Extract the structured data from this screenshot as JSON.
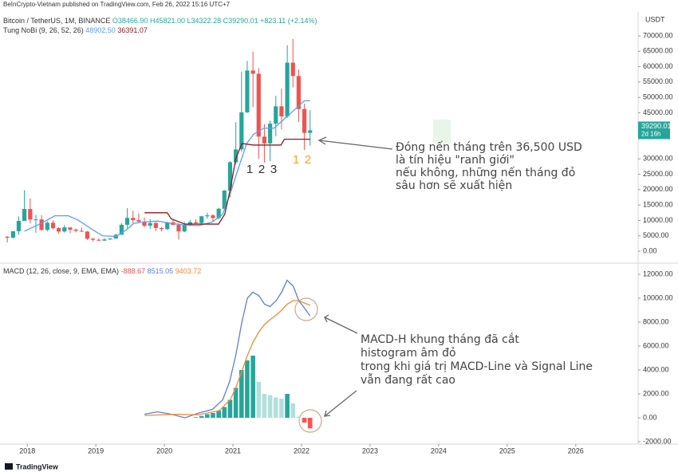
{
  "publisher": "BeInCrypto-Vietnam published on TradingView.com, Feb 26, 2022 15:16 UTC+7",
  "footer": "TradingView",
  "currency": "USDT",
  "chart_data": [
    {
      "type": "candlestick",
      "title": "Bitcoin / TetherUS, 1M, BINANCE",
      "ohlc_labels": [
        "O38466.90",
        "H45821.00",
        "L34322.28",
        "C39290.01",
        "+823.11 (+2.14%)"
      ],
      "indicator": "Tung NoBi (9, 26, 52, 26)",
      "up_color": "#26a69a",
      "down_color": "#ef5350",
      "x": [
        2017.708,
        2017.792,
        2017.875,
        2017.958,
        2018.042,
        2018.125,
        2018.208,
        2018.292,
        2018.375,
        2018.458,
        2018.542,
        2018.625,
        2018.708,
        2018.792,
        2018.875,
        2018.958,
        2019.042,
        2019.125,
        2019.208,
        2019.292,
        2019.375,
        2019.458,
        2019.542,
        2019.625,
        2019.708,
        2019.792,
        2019.875,
        2019.958,
        2020.042,
        2020.125,
        2020.208,
        2020.292,
        2020.375,
        2020.458,
        2020.542,
        2020.625,
        2020.708,
        2020.792,
        2020.875,
        2020.958,
        2021.042,
        2021.125,
        2021.208,
        2021.292,
        2021.375,
        2021.458,
        2021.542,
        2021.625,
        2021.708,
        2021.792,
        2021.875,
        2021.958,
        2022.042,
        2022.125
      ],
      "open": [
        4690,
        4378,
        6463,
        9838,
        13716,
        10285,
        10326,
        6923,
        9246,
        7485,
        6391,
        7730,
        7011,
        6626,
        6371,
        4041,
        3702,
        3434,
        3814,
        4103,
        5321,
        8574,
        10817,
        10086,
        9588,
        8289,
        9141,
        7541,
        7195,
        9352,
        8523,
        6410,
        8620,
        9448,
        9138,
        11335,
        11649,
        10776,
        13791,
        19695,
        28923,
        33092,
        45135,
        58740,
        57694,
        37253,
        35045,
        41461,
        47100,
        43824,
        61299,
        56950,
        46216,
        38466.9
      ],
      "high": [
        4940,
        6470,
        11300,
        19798,
        17176,
        11786,
        11710,
        9759,
        10020,
        7786,
        8507,
        7750,
        7410,
        7680,
        6588,
        4313,
        4140,
        4198,
        4140,
        5600,
        9074,
        13970,
        13147,
        12325,
        10905,
        10370,
        9503,
        7750,
        9578,
        10500,
        9188,
        9468,
        10067,
        10380,
        11444,
        12468,
        12050,
        14100,
        19863,
        29300,
        41950,
        58352,
        61844,
        64854,
        59500,
        41330,
        42448,
        50500,
        52920,
        67000,
        69000,
        59053,
        47990,
        45821
      ],
      "low": [
        2817,
        4110,
        5325,
        10400,
        9035,
        5968,
        6600,
        6430,
        7032,
        5750,
        6070,
        5880,
        6100,
        6200,
        3652,
        3156,
        3349,
        3400,
        3670,
        4030,
        5350,
        7444,
        9071,
        9320,
        7710,
        7300,
        6515,
        6435,
        6871,
        8445,
        3782,
        6150,
        8117,
        8833,
        8893,
        10518,
        9825,
        10374,
        13195,
        17572,
        28130,
        32296,
        44950,
        46930,
        30000,
        28805,
        29278,
        37332,
        39600,
        43283,
        53256,
        42000,
        32917,
        34322.28
      ],
      "close": [
        4378,
        6463,
        9838,
        13716,
        10285,
        10326,
        6923,
        9246,
        7485,
        6391,
        7730,
        7011,
        6626,
        6371,
        4041,
        3702,
        3434,
        3814,
        4103,
        5321,
        8574,
        10817,
        10086,
        9588,
        8289,
        9141,
        7541,
        7195,
        9352,
        8523,
        6410,
        8620,
        9448,
        9138,
        11335,
        11649,
        10776,
        13791,
        19695,
        28923,
        33092,
        45135,
        58740,
        57694,
        37253,
        35045,
        41461,
        47100,
        43824,
        61299,
        56950,
        46216,
        38466.9,
        39290.01
      ],
      "last_price_label": "39290.01",
      "countdown": "2d 16h",
      "last_price_color": "#26a69a",
      "series": [
        {
          "color": "#5b9cf6",
          "last_label": "48902.50",
          "x": [
            2017.958,
            2018.2,
            2018.4,
            2018.6,
            2018.75,
            2018.95,
            2019.1,
            2019.3,
            2019.45,
            2019.55,
            2019.7,
            2019.9,
            2020.1,
            2020.3,
            2020.5,
            2020.7,
            2020.85,
            2020.95,
            2021.05,
            2021.2,
            2021.3,
            2021.45,
            2021.6,
            2021.75,
            2021.9,
            2022.042,
            2022.125
          ],
          "values": [
            6500,
            9000,
            11500,
            11500,
            10000,
            7000,
            5000,
            4800,
            7000,
            9000,
            9500,
            9800,
            9000,
            8500,
            8300,
            9500,
            12000,
            18000,
            25000,
            35000,
            38000,
            40000,
            40000,
            43000,
            46000,
            48902.5,
            48902.5
          ]
        },
        {
          "color": "#8b1c1c",
          "last_label": "36391.07",
          "x": [
            2019.71,
            2020.04,
            2020.1,
            2020.3,
            2020.79,
            2020.88,
            2020.96,
            2021.04,
            2021.13,
            2021.3,
            2021.7,
            2021.75,
            2022.125
          ],
          "values": [
            12500,
            12500,
            10500,
            8800,
            8800,
            12000,
            20000,
            30000,
            35000,
            34500,
            34500,
            36391.07,
            36391.07
          ]
        }
      ],
      "ylim": [
        -3370,
        77780
      ],
      "yticks": [
        {
          "value": 0,
          "label": "0.00"
        },
        {
          "value": 5000,
          "label": "5000.00"
        },
        {
          "value": 10000,
          "label": "10000.00"
        },
        {
          "value": 15000,
          "label": "15000.00"
        },
        {
          "value": 20000,
          "label": "20000.00"
        },
        {
          "value": 25000,
          "label": "25000.00"
        },
        {
          "value": 30000,
          "label": "30000.00"
        },
        {
          "value": 45000,
          "label": "45000.00"
        },
        {
          "value": 50000,
          "label": "50000.00"
        },
        {
          "value": 55000,
          "label": "55000.00"
        },
        {
          "value": 60000,
          "label": "60000.00"
        },
        {
          "value": 65000,
          "label": "65000.00"
        },
        {
          "value": 70000,
          "label": "70000.00"
        }
      ],
      "xlim": [
        2017.66,
        2026.91
      ],
      "wave_labels_gray": [
        "1",
        "2",
        "3"
      ],
      "wave_labels_orange": [
        "1",
        "2"
      ],
      "annotation": [
        "Đóng nến tháng trên 36,500 USD",
        "là tín hiệu \"ranh giới\"",
        "nếu không, những nến tháng đỏ",
        "sâu hơn sẽ xuất hiện"
      ]
    },
    {
      "type": "macd",
      "title": "MACD (12, 26, close, 9, EMA, EMA)",
      "histogram": {
        "last_label": "-888.67",
        "x": [
          2020.458,
          2020.542,
          2020.625,
          2020.708,
          2020.792,
          2020.875,
          2020.958,
          2021.042,
          2021.125,
          2021.208,
          2021.292,
          2021.375,
          2021.458,
          2021.542,
          2021.625,
          2021.708,
          2021.792,
          2021.875,
          2021.958,
          2022.042,
          2022.125
        ],
        "values": [
          50,
          150,
          300,
          400,
          600,
          900,
          1500,
          2500,
          4000,
          4800,
          5200,
          3000,
          2000,
          1900,
          1700,
          1600,
          2000,
          1200,
          100,
          -400,
          -888.67
        ]
      },
      "series": [
        {
          "color": "#5b7fe0",
          "last_label": "8515.05",
          "x": [
            2019.71,
            2019.9,
            2020.1,
            2020.3,
            2020.5,
            2020.7,
            2020.85,
            2020.95,
            2021.04,
            2021.13,
            2021.21,
            2021.29,
            2021.38,
            2021.46,
            2021.54,
            2021.63,
            2021.71,
            2021.79,
            2021.88,
            2021.96,
            2022.04,
            2022.125
          ],
          "values": [
            300,
            500,
            300,
            0,
            400,
            700,
            1500,
            3000,
            5200,
            8000,
            10000,
            10500,
            10200,
            9500,
            9300,
            9800,
            10500,
            11500,
            11000,
            9800,
            9200,
            8515.05
          ]
        },
        {
          "color": "#f5893a",
          "last_label": "9403.72",
          "x": [
            2019.71,
            2020.2,
            2020.5,
            2020.8,
            2020.96,
            2021.04,
            2021.13,
            2021.21,
            2021.29,
            2021.38,
            2021.46,
            2021.54,
            2021.63,
            2021.71,
            2021.79,
            2021.88,
            2021.96,
            2022.04,
            2022.125
          ],
          "values": [
            200,
            300,
            250,
            600,
            1500,
            2500,
            3900,
            5200,
            6300,
            7200,
            7800,
            8200,
            8600,
            9000,
            9500,
            9800,
            9800,
            9600,
            9403.72
          ]
        }
      ],
      "ylim": [
        -2200,
        12800
      ],
      "yticks": [
        {
          "value": -2000,
          "label": "-2000.00"
        },
        {
          "value": 0,
          "label": "0.00"
        },
        {
          "value": 2000,
          "label": "2000.00"
        },
        {
          "value": 4000,
          "label": "4000.00"
        },
        {
          "value": 6000,
          "label": "6000.00"
        },
        {
          "value": 8000,
          "label": "8000.00"
        },
        {
          "value": 10000,
          "label": "10000.00"
        },
        {
          "value": 12000,
          "label": "12000.00"
        }
      ],
      "xlim": [
        2017.66,
        2026.91
      ],
      "xticks": [
        2018,
        2019,
        2020,
        2021,
        2022,
        2023,
        2024,
        2025,
        2026
      ],
      "annotation": [
        "MACD-H khung tháng đã cắt",
        "histogram âm đỏ",
        "trong khi giá trị MACD-Line và Signal Line",
        "vẫn đang rất cao"
      ]
    }
  ]
}
